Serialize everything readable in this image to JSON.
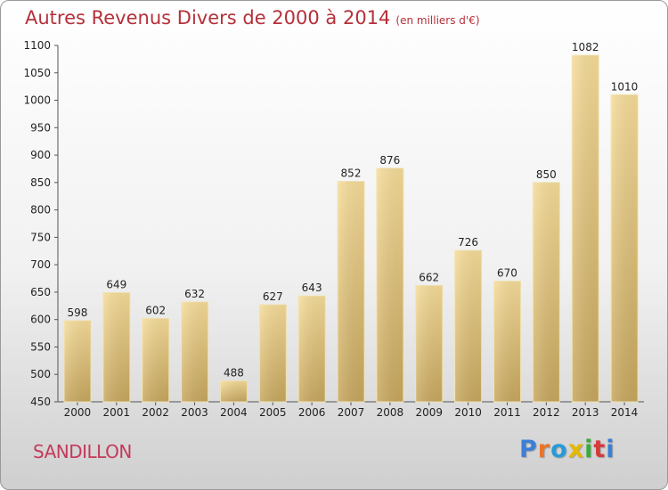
{
  "title": "Autres Revenus Divers de 2000 à 2014",
  "subtitle": "(en milliers d'€)",
  "commune": "SANDILLON",
  "logo": {
    "text": "Proxiti",
    "colors": [
      "#3d7fd6",
      "#e8742a",
      "#2a9ad6",
      "#e6b800",
      "#3aaa3a",
      "#d63a3a",
      "#3a7fd6"
    ]
  },
  "chart_data": {
    "type": "bar",
    "title": "Autres Revenus Divers de 2000 à 2014",
    "subtitle": "(en milliers d'€)",
    "categories": [
      "2000",
      "2001",
      "2002",
      "2003",
      "2004",
      "2005",
      "2006",
      "2007",
      "2008",
      "2009",
      "2010",
      "2011",
      "2012",
      "2013",
      "2014"
    ],
    "values": [
      598,
      649,
      602,
      632,
      488,
      627,
      643,
      852,
      876,
      662,
      726,
      670,
      850,
      1082,
      1010
    ],
    "ylim": [
      450,
      1100
    ],
    "yticks": [
      450,
      500,
      550,
      600,
      650,
      700,
      750,
      800,
      850,
      900,
      950,
      1000,
      1050,
      1100
    ],
    "grid": false,
    "bar_color": "#e9cd88",
    "bar_color_dark": "#c9a95f"
  }
}
